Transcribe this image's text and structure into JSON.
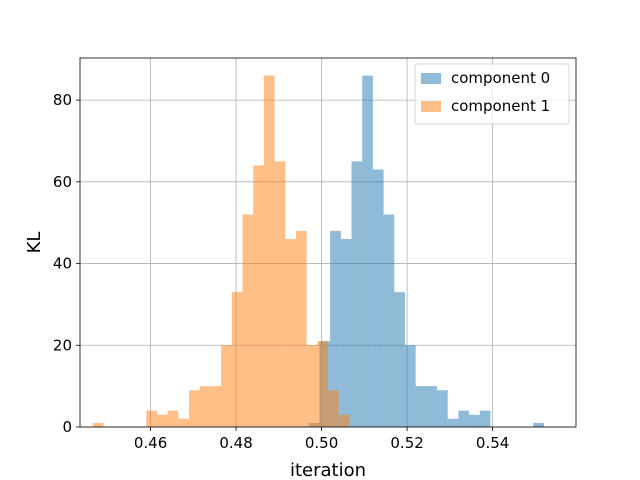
{
  "chart_data": {
    "type": "histogram",
    "title": "",
    "xlabel": "iteration",
    "ylabel": "KL",
    "xlim": [
      0.4435,
      0.5595
    ],
    "ylim": [
      0,
      90.3
    ],
    "xticks": [
      0.46,
      0.48,
      0.5,
      0.52,
      0.54
    ],
    "xtick_labels": [
      "0.46",
      "0.48",
      "0.50",
      "0.52",
      "0.54"
    ],
    "yticks": [
      0,
      20,
      40,
      60,
      80
    ],
    "ytick_labels": [
      "0",
      "20",
      "40",
      "60",
      "80"
    ],
    "grid": true,
    "legend_position": "upper right",
    "series": [
      {
        "name": "component 0",
        "color": "#1f77b4",
        "alpha": 0.5,
        "bins": [
          [
            0.497,
            0.4995,
            1
          ],
          [
            0.4995,
            0.502,
            21
          ],
          [
            0.502,
            0.5045,
            48
          ],
          [
            0.5045,
            0.507,
            46
          ],
          [
            0.507,
            0.5095,
            65
          ],
          [
            0.5095,
            0.512,
            86
          ],
          [
            0.512,
            0.5145,
            63
          ],
          [
            0.5145,
            0.517,
            52
          ],
          [
            0.517,
            0.5195,
            33
          ],
          [
            0.5195,
            0.522,
            20
          ],
          [
            0.522,
            0.5245,
            10
          ],
          [
            0.5245,
            0.527,
            10
          ],
          [
            0.527,
            0.5295,
            9
          ],
          [
            0.5295,
            0.532,
            2
          ],
          [
            0.532,
            0.5345,
            4
          ],
          [
            0.5345,
            0.537,
            3
          ],
          [
            0.537,
            0.5395,
            4
          ],
          [
            0.5395,
            0.542,
            0
          ],
          [
            0.542,
            0.5445,
            0
          ],
          [
            0.5445,
            0.547,
            0
          ],
          [
            0.547,
            0.5495,
            0
          ],
          [
            0.5495,
            0.552,
            1
          ]
        ]
      },
      {
        "name": "component 1",
        "color": "#ff7f0e",
        "alpha": 0.5,
        "bins": [
          [
            0.4465,
            0.449,
            1
          ],
          [
            0.449,
            0.4515,
            0
          ],
          [
            0.4515,
            0.454,
            0
          ],
          [
            0.454,
            0.4565,
            0
          ],
          [
            0.4565,
            0.459,
            0
          ],
          [
            0.459,
            0.4615,
            4
          ],
          [
            0.4615,
            0.464,
            3
          ],
          [
            0.464,
            0.4665,
            4
          ],
          [
            0.4665,
            0.469,
            2
          ],
          [
            0.469,
            0.4715,
            9
          ],
          [
            0.4715,
            0.474,
            10
          ],
          [
            0.474,
            0.4765,
            10
          ],
          [
            0.4765,
            0.479,
            20
          ],
          [
            0.479,
            0.4815,
            33
          ],
          [
            0.4815,
            0.484,
            52
          ],
          [
            0.484,
            0.4865,
            64
          ],
          [
            0.4865,
            0.489,
            86
          ],
          [
            0.489,
            0.4915,
            65
          ],
          [
            0.4915,
            0.494,
            46
          ],
          [
            0.494,
            0.4965,
            48
          ],
          [
            0.4965,
            0.499,
            20
          ],
          [
            0.499,
            0.5015,
            21
          ],
          [
            0.5015,
            0.504,
            9
          ],
          [
            0.504,
            0.5065,
            3
          ],
          [
            0.5065,
            0.509,
            0
          ]
        ]
      }
    ]
  }
}
